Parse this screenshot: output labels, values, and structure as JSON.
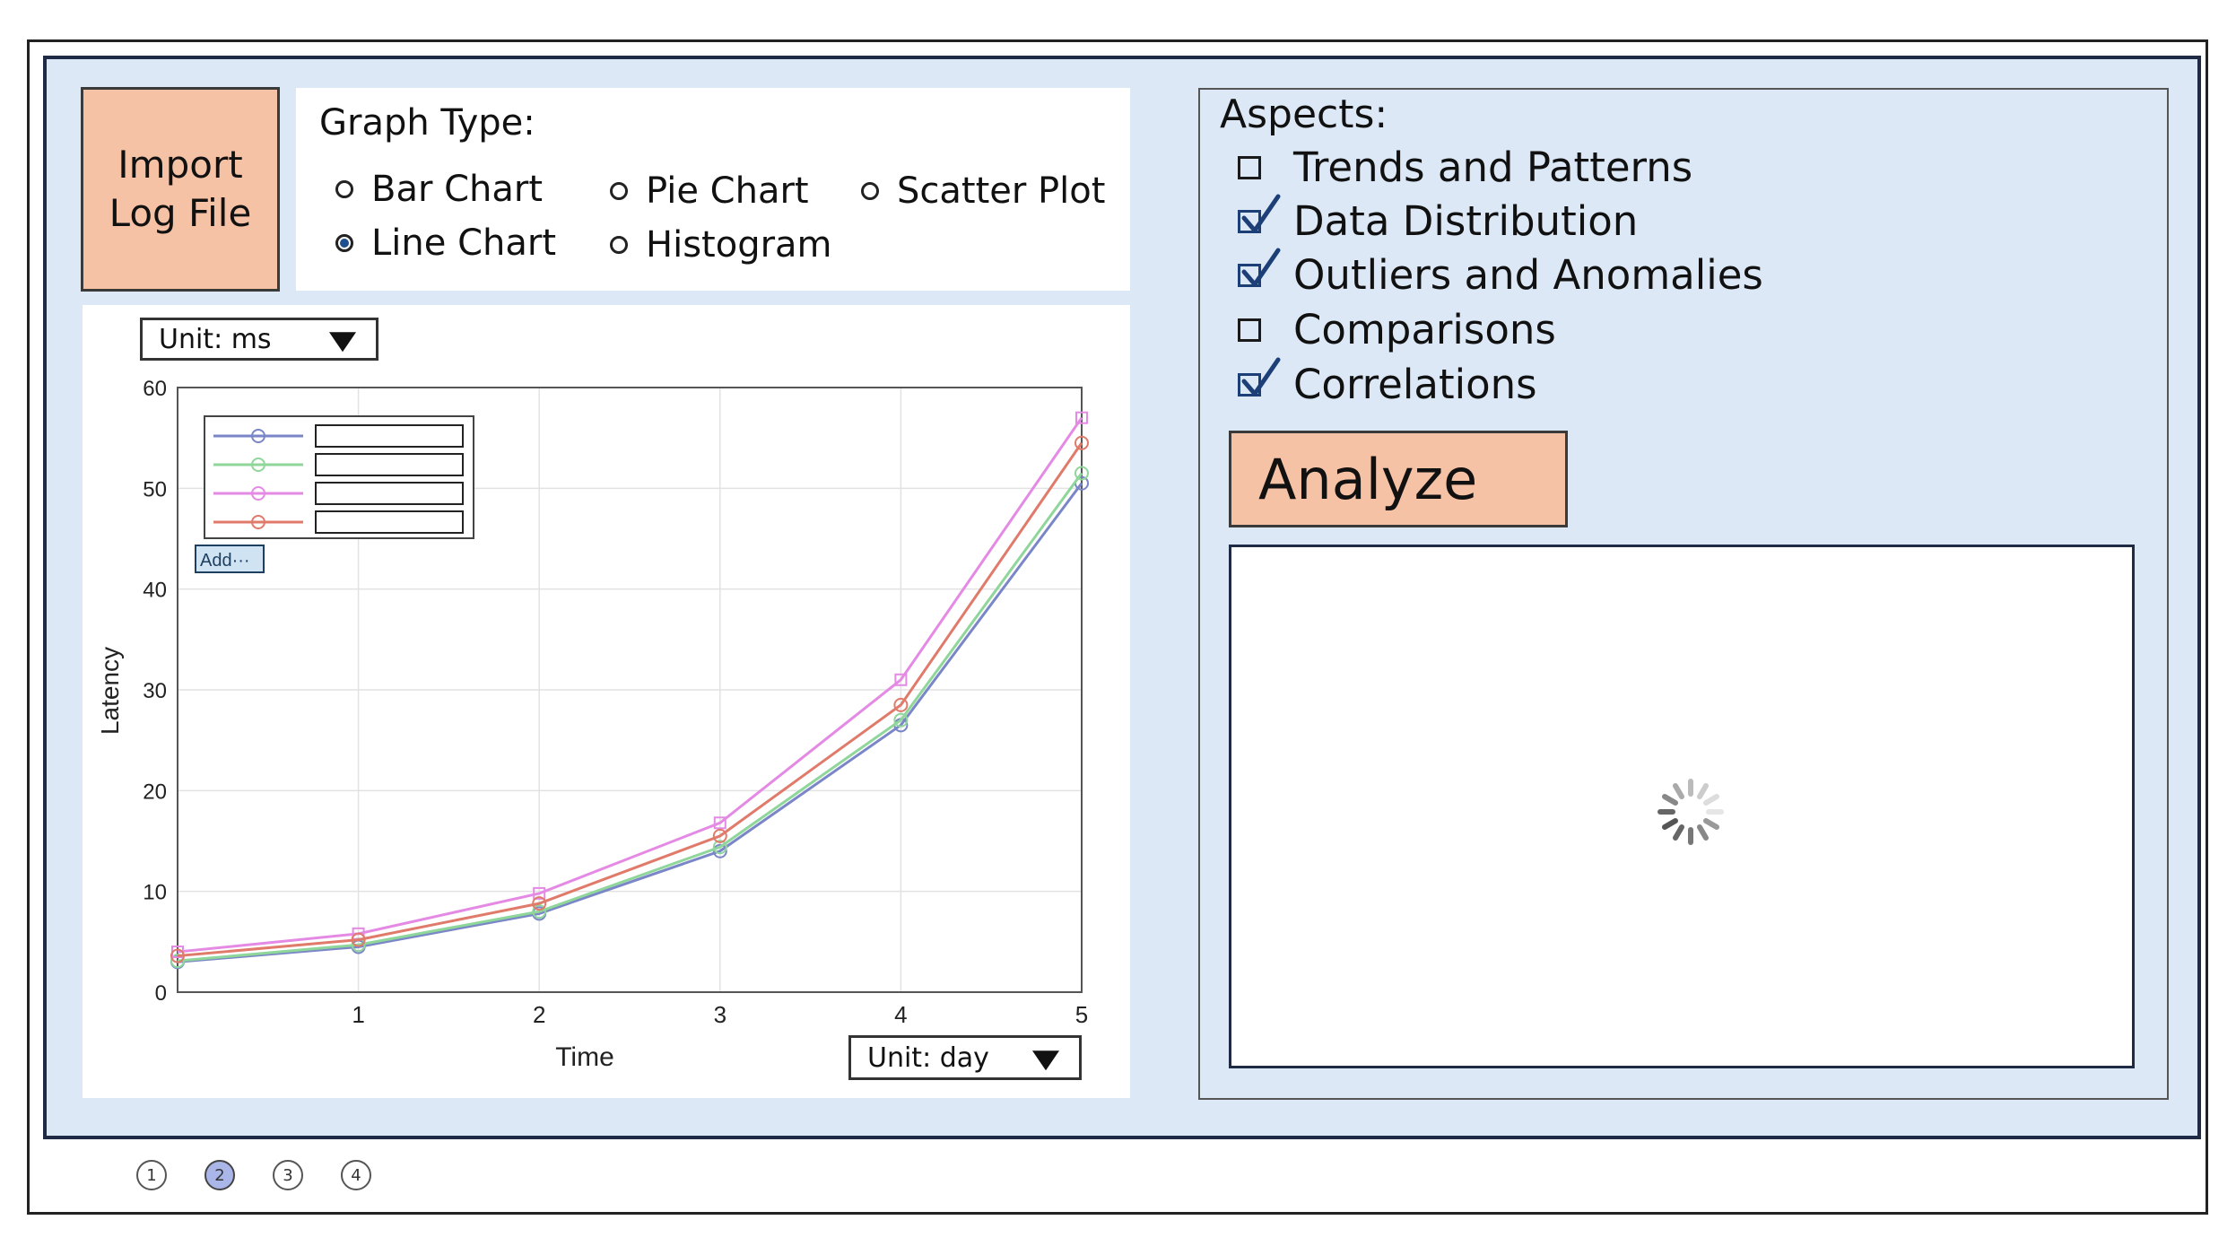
{
  "import_button": {
    "label": "Import\nLog File"
  },
  "graph_type": {
    "title": "Graph Type:",
    "options": [
      {
        "label": "Bar Chart",
        "selected": false
      },
      {
        "label": "Pie Chart",
        "selected": false
      },
      {
        "label": "Scatter Plot",
        "selected": false
      },
      {
        "label": "Line Chart",
        "selected": true
      },
      {
        "label": "Histogram",
        "selected": false
      }
    ]
  },
  "chart": {
    "y_unit_select": "Unit: ms",
    "x_unit_select": "Unit: day",
    "legend_add_button": "Add···"
  },
  "chart_data": {
    "type": "line",
    "title": "",
    "xlabel": "Time",
    "ylabel": "Latency",
    "xlim": [
      0,
      5
    ],
    "ylim": [
      0,
      60
    ],
    "x_ticks": [
      1,
      2,
      3,
      4,
      5
    ],
    "y_ticks": [
      0,
      10,
      20,
      30,
      40,
      50,
      60
    ],
    "grid": true,
    "legend_position": "top-left",
    "x": [
      0,
      1,
      2,
      3,
      4,
      5
    ],
    "series": [
      {
        "values": [
          3.0,
          4.5,
          7.8,
          14.0,
          26.5,
          50.5
        ],
        "color": "#7a86c8",
        "marker": "circle"
      },
      {
        "values": [
          3.1,
          4.7,
          8.0,
          14.4,
          27.0,
          51.5
        ],
        "color": "#8fd69a",
        "marker": "circle"
      },
      {
        "values": [
          4.0,
          5.8,
          9.8,
          16.8,
          31.0,
          57.0
        ],
        "color": "#e48ae4",
        "marker": "square"
      },
      {
        "values": [
          3.6,
          5.2,
          8.8,
          15.5,
          28.5,
          54.5
        ],
        "color": "#e07a6a",
        "marker": "star"
      }
    ]
  },
  "aspects": {
    "title": "Aspects:",
    "items": [
      {
        "label": "Trends and Patterns",
        "checked": false
      },
      {
        "label": "Data Distribution",
        "checked": true
      },
      {
        "label": "Outliers and Anomalies",
        "checked": true
      },
      {
        "label": "Comparisons",
        "checked": false
      },
      {
        "label": "Correlations",
        "checked": true
      }
    ]
  },
  "analyze_button": {
    "label": "Analyze"
  },
  "pager": {
    "pages": [
      "1",
      "2",
      "3",
      "4"
    ],
    "active": "2"
  },
  "colors": {
    "panel_bg": "#dce8f6",
    "button_bg": "#f6c2a6",
    "check_color": "#1d3f78"
  }
}
